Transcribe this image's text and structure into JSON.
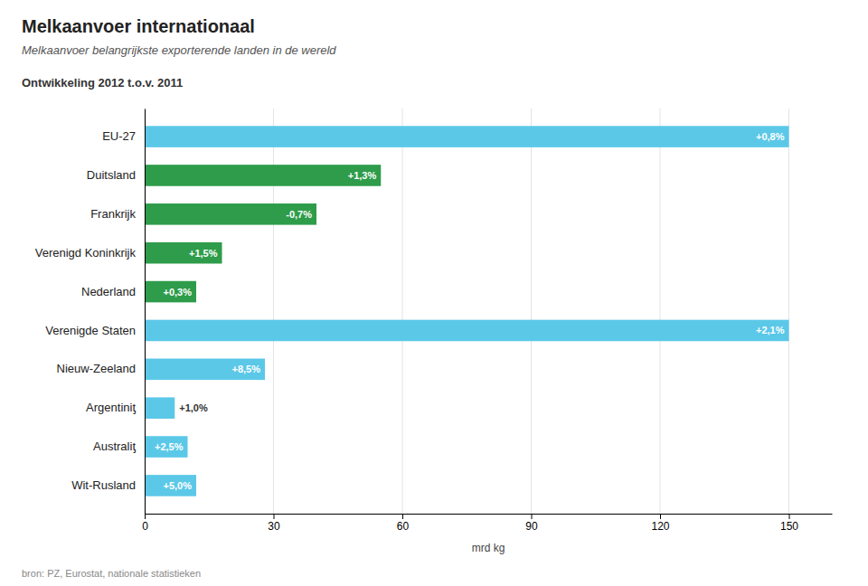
{
  "chart_data": {
    "type": "bar",
    "orientation": "horizontal",
    "title": "Melkaanvoer internationaal",
    "subtitle": "Melkaanvoer belangrijkste exporterende landen in de wereld",
    "x_label": "mrd kg",
    "annotations": [
      "Ontwikkeling 2012 t.o.v. 2011",
      "bron: PZ, Eurostat, nationale statistieken"
    ],
    "categories": [
      "EU-27",
      "Duitsland",
      "Frankrijk",
      "Verenigd Koninkrijk",
      "Nederland",
      "Verenigde Staten",
      "Nieuw-Zeeland",
      "Argentiniƫ",
      "Australiƫ",
      "Wit-Rusland"
    ],
    "values": [
      150,
      55,
      40,
      18,
      12,
      150,
      28,
      7,
      10,
      12
    ],
    "bar_labels": [
      "+0,8%",
      "+1,3%",
      "-0,7%",
      "+1,5%",
      "+0,3%",
      "+2,1%",
      "+8,5%",
      "+1,0%",
      "+2,5%",
      "+5,0%"
    ],
    "colors": [
      "#5bc8e8",
      "#2e9c4a",
      "#2e9c4a",
      "#2e9c4a",
      "#2e9c4a",
      "#5bc8e8",
      "#5bc8e8",
      "#5bc8e8",
      "#5bc8e8",
      "#5bc8e8"
    ],
    "xlim": [
      0,
      160
    ],
    "xticks": [
      0,
      30,
      60,
      90,
      120,
      150
    ],
    "grid": true
  }
}
